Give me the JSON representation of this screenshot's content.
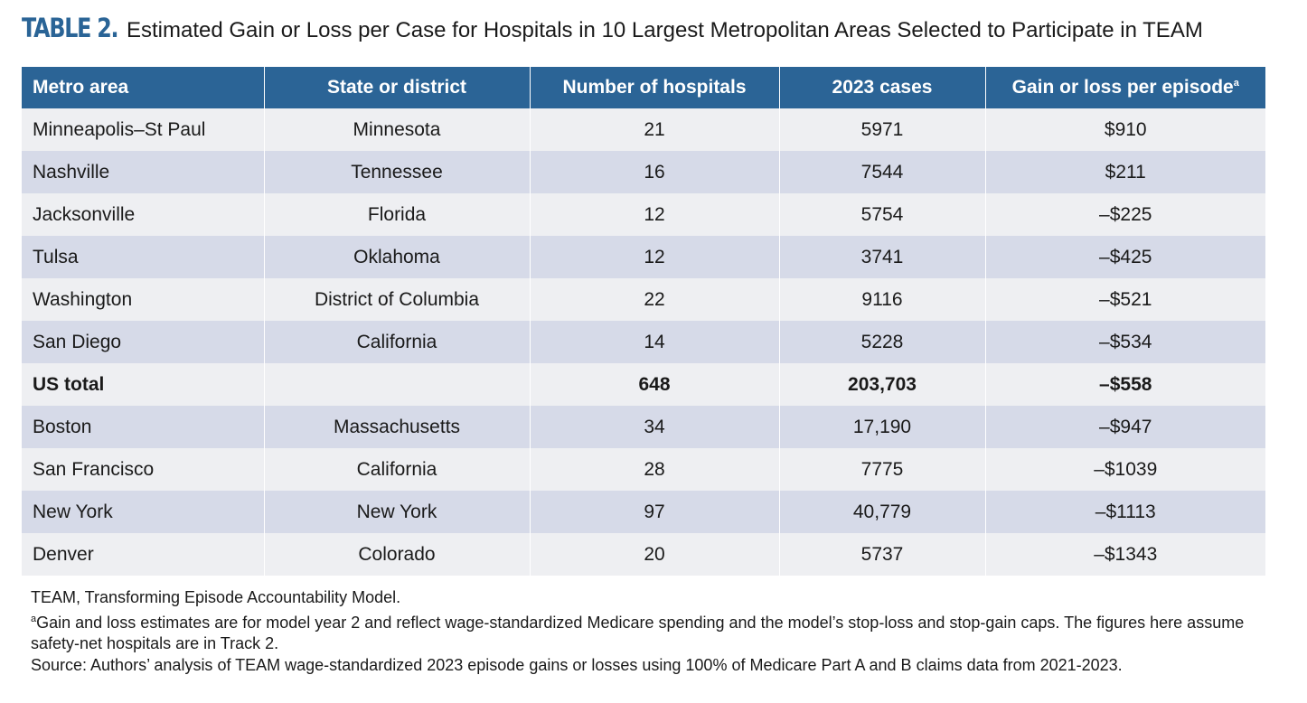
{
  "title": {
    "label": "TABLE 2.",
    "text": "Estimated Gain or Loss per Case for Hospitals in 10 Largest Metropolitan Areas Selected to Participate in TEAM"
  },
  "table": {
    "headers": {
      "metro": "Metro area",
      "state": "State or district",
      "hospitals": "Number of hospitals",
      "cases": "2023 cases",
      "gain": "Gain or loss per episode",
      "gain_sup": "a"
    },
    "rows": [
      {
        "metro": "Minneapolis–St Paul",
        "state": "Minnesota",
        "hospitals": "21",
        "cases": "5971",
        "gain": "$910"
      },
      {
        "metro": "Nashville",
        "state": "Tennessee",
        "hospitals": "16",
        "cases": "7544",
        "gain": "$211"
      },
      {
        "metro": "Jacksonville",
        "state": "Florida",
        "hospitals": "12",
        "cases": "5754",
        "gain": "–$225"
      },
      {
        "metro": "Tulsa",
        "state": "Oklahoma",
        "hospitals": "12",
        "cases": "3741",
        "gain": "–$425"
      },
      {
        "metro": "Washington",
        "state": "District of Columbia",
        "hospitals": "22",
        "cases": "9116",
        "gain": "–$521"
      },
      {
        "metro": "San Diego",
        "state": "California",
        "hospitals": "14",
        "cases": "5228",
        "gain": "–$534"
      },
      {
        "metro": "US total",
        "state": "",
        "hospitals": "648",
        "cases": "203,703",
        "gain": "–$558"
      },
      {
        "metro": "Boston",
        "state": "Massachusetts",
        "hospitals": "34",
        "cases": "17,190",
        "gain": "–$947"
      },
      {
        "metro": "San Francisco",
        "state": "California",
        "hospitals": "28",
        "cases": "7775",
        "gain": "–$1039"
      },
      {
        "metro": "New York",
        "state": "New York",
        "hospitals": "97",
        "cases": "40,779",
        "gain": "–$1113"
      },
      {
        "metro": "Denver",
        "state": "Colorado",
        "hospitals": "20",
        "cases": "5737",
        "gain": "–$1343"
      }
    ]
  },
  "footnotes": {
    "abbrev": "TEAM, Transforming Episode Accountability Model.",
    "note_a_sup": "a",
    "note_a": "Gain and loss estimates are for model year 2 and reflect wage-standardized Medicare spending and the model’s stop-loss and stop-gain caps. The figures here assume safety-net hospitals are in Track 2.",
    "source": "Source: Authors’ analysis of TEAM wage-standardized 2023 episode gains or losses using 100% of Medicare Part A and B claims data from 2021-2023."
  },
  "colors": {
    "header_bg": "#2b6496",
    "title_label": "#2a6496",
    "row_light": "#eeeff2",
    "row_dark": "#d6dae8"
  }
}
